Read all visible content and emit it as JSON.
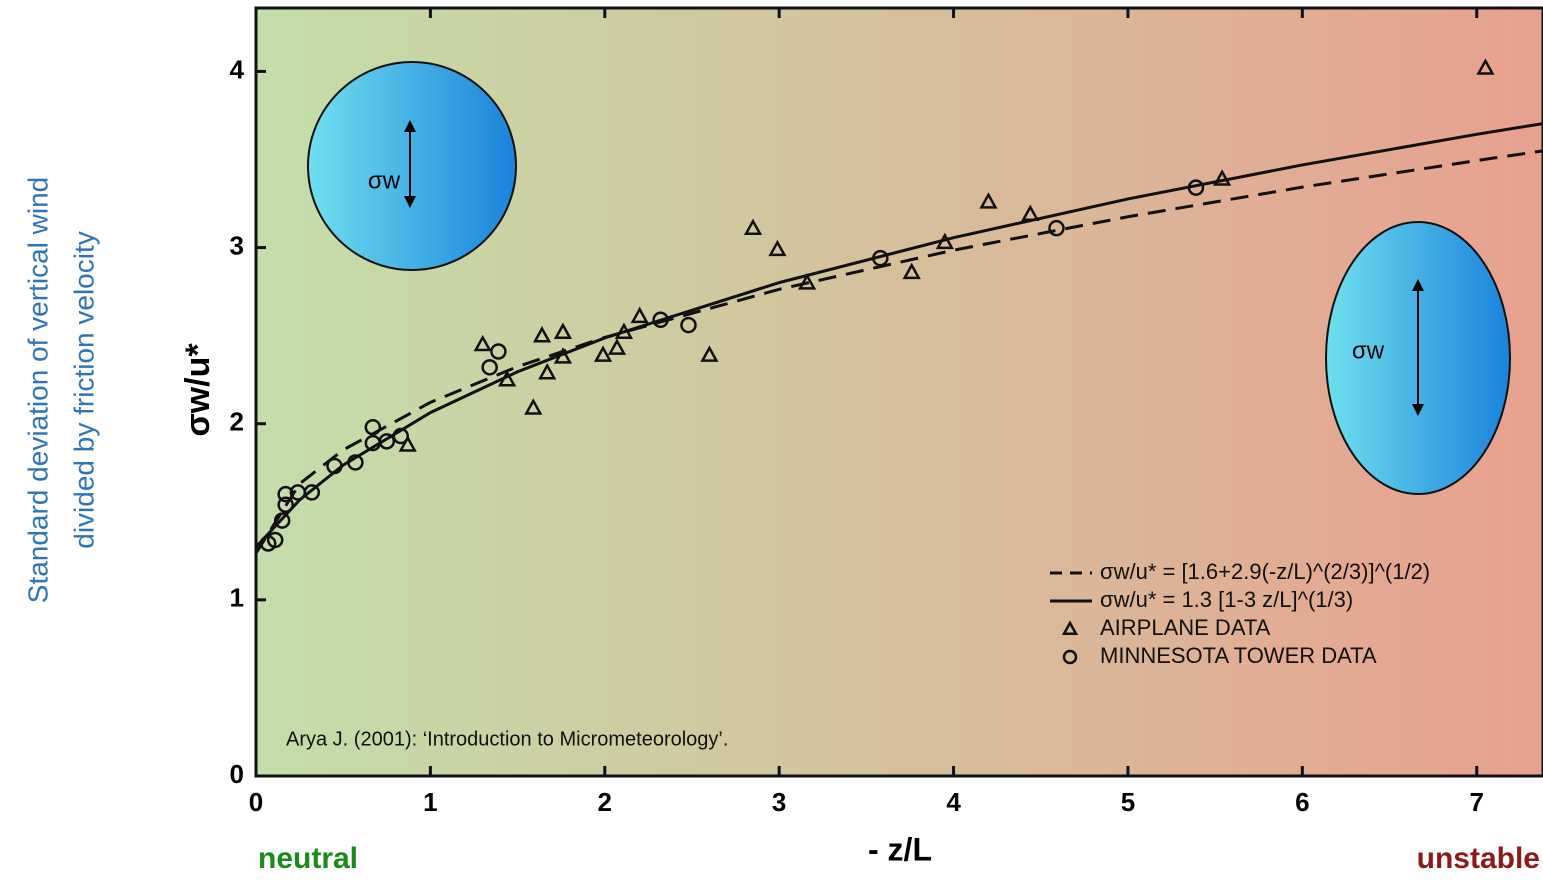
{
  "chart_data": {
    "type": "scatter",
    "y_label": "σw/u*",
    "x_label": "- z/L",
    "side_label": [
      "Standard deviation of vertical wind",
      "divided by friction velocity"
    ],
    "left_note": "neutral",
    "right_note": "unstable",
    "citation": "Arya J. (2001): ‘Introduction to Micrometeorology’.",
    "eddy_labels": [
      "σw",
      "σw"
    ],
    "xlim": [
      0,
      7.38
    ],
    "ylim": [
      0,
      4.36
    ],
    "xticks": [
      0,
      1,
      2,
      3,
      4,
      5,
      6,
      7
    ],
    "yticks": [
      0,
      1,
      2,
      3,
      4
    ],
    "series": [
      {
        "name": "σw/u* = [1.6+2.9(-z/L)^(2/3)]^(1/2)",
        "style": "dashed",
        "color": "#111111",
        "x": [
          0,
          0.25,
          0.5,
          1,
          1.5,
          2,
          3,
          4,
          5,
          6,
          7,
          7.38
        ],
        "values": [
          1.265,
          1.659,
          1.851,
          2.121,
          2.324,
          2.49,
          2.763,
          2.985,
          3.175,
          3.343,
          3.494,
          3.549
        ]
      },
      {
        "name": "σw/u* = 1.3 [1-3 z/L]^(1/3)",
        "style": "solid",
        "color": "#111111",
        "x": [
          0,
          0.25,
          0.5,
          1,
          1.5,
          2,
          3,
          4,
          5,
          6,
          7,
          7.38
        ],
        "values": [
          1.3,
          1.567,
          1.765,
          2.063,
          2.295,
          2.487,
          2.801,
          3.056,
          3.276,
          3.469,
          3.643,
          3.704
        ]
      },
      {
        "name": "AIRPLANE DATA",
        "marker": "triangle",
        "color": "#111111",
        "x": [
          7.05,
          5.54,
          4.44,
          4.2,
          3.95,
          3.76,
          3.16,
          2.99,
          2.85,
          2.6,
          2.2,
          2.11,
          2.07,
          1.99,
          1.76,
          1.76,
          1.67,
          1.64,
          1.59,
          1.44,
          1.3,
          0.87
        ],
        "values": [
          4.02,
          3.39,
          3.19,
          3.26,
          3.03,
          2.86,
          2.8,
          2.99,
          3.11,
          2.39,
          2.61,
          2.52,
          2.43,
          2.39,
          2.52,
          2.38,
          2.29,
          2.5,
          2.09,
          2.25,
          2.45,
          1.88
        ]
      },
      {
        "name": "MINNESOTA TOWER DATA",
        "marker": "circle",
        "color": "#111111",
        "x": [
          5.39,
          4.59,
          3.58,
          2.48,
          2.32,
          1.39,
          1.34,
          0.83,
          0.75,
          0.67,
          0.67,
          0.57,
          0.45,
          0.32,
          0.24,
          0.17,
          0.17,
          0.15,
          0.11,
          0.07
        ],
        "values": [
          3.34,
          3.11,
          2.94,
          2.56,
          2.59,
          2.41,
          2.32,
          1.93,
          1.9,
          1.98,
          1.89,
          1.78,
          1.76,
          1.61,
          1.61,
          1.6,
          1.54,
          1.45,
          1.34,
          1.32
        ]
      }
    ]
  }
}
